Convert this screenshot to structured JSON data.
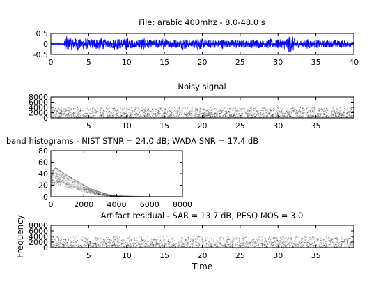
{
  "colors": {
    "waveform": "#0000ff",
    "axes": "#000000",
    "texture": "#000000",
    "background": "#ffffff"
  },
  "chart_data": [
    {
      "id": "wave",
      "type": "line",
      "title": "File: arabic 400mhz - 8.0-48.0 s",
      "xlabel": "",
      "ylabel": "",
      "xlim": [
        0,
        40
      ],
      "ylim": [
        -0.5,
        0.5
      ],
      "xticks": [
        "0",
        "5",
        "10",
        "15",
        "20",
        "25",
        "30",
        "35",
        "40"
      ],
      "yticks": [
        "-0.5",
        "0",
        "0.5"
      ],
      "grid": false,
      "series": [
        {
          "x": [
            0,
            1.7,
            2.0,
            2.5,
            3.0,
            3.5,
            4.0,
            4.5,
            5.0,
            5.5,
            6.0,
            6.5,
            7.0,
            7.5,
            8.0,
            8.5,
            9.0,
            9.5,
            10.0,
            10.5,
            11.0,
            11.5,
            12.0,
            12.5,
            13.0,
            13.5,
            14.0,
            14.5,
            15.0,
            15.5,
            16.0,
            16.5,
            17.0,
            17.5,
            18.0,
            18.5,
            19.0,
            19.5,
            20.0,
            20.5,
            21.0,
            21.5,
            22.0,
            22.5,
            23.0,
            23.5,
            24.0,
            24.5,
            25.0,
            25.5,
            26.0,
            26.5,
            27.0,
            27.5,
            28.0,
            28.5,
            29.0,
            29.5,
            30.0,
            30.5,
            31.0,
            31.5,
            32.0,
            32.5,
            33.0,
            33.5,
            34.0,
            34.5,
            35.0,
            35.5,
            36.0,
            36.5,
            37.0,
            37.5,
            38.0,
            38.5,
            39.0,
            39.5,
            40.0
          ],
          "envelope": [
            0.03,
            0.03,
            0.4,
            0.3,
            0.25,
            0.35,
            0.2,
            0.3,
            0.2,
            0.25,
            0.25,
            0.3,
            0.25,
            0.15,
            0.2,
            0.3,
            0.25,
            0.2,
            0.35,
            0.25,
            0.15,
            0.2,
            0.3,
            0.25,
            0.2,
            0.15,
            0.25,
            0.2,
            0.3,
            0.15,
            0.25,
            0.2,
            0.15,
            0.3,
            0.2,
            0.15,
            0.2,
            0.3,
            0.25,
            0.15,
            0.2,
            0.2,
            0.15,
            0.25,
            0.2,
            0.15,
            0.2,
            0.25,
            0.15,
            0.2,
            0.15,
            0.2,
            0.25,
            0.2,
            0.15,
            0.2,
            0.25,
            0.15,
            0.25,
            0.2,
            0.3,
            0.45,
            0.35,
            0.2,
            0.15,
            0.2,
            0.25,
            0.15,
            0.2,
            0.2,
            0.15,
            0.2,
            0.15,
            0.2,
            0.15,
            0.2,
            0.15,
            0.15,
            0.1
          ]
        }
      ]
    },
    {
      "id": "noisy",
      "type": "heatmap",
      "title": "Noisy signal",
      "xlabel": "",
      "ylabel": "",
      "xlim": [
        0,
        40
      ],
      "ylim": [
        0,
        8000
      ],
      "xticks": [
        "5",
        "10",
        "15",
        "20",
        "25",
        "30",
        "35"
      ],
      "yticks": [
        "0",
        "2000",
        "4000",
        "6000",
        "8000"
      ],
      "grid": false,
      "description_values": {
        "band_top": 4000,
        "relative_density": [
          1.0,
          0.8,
          0.6,
          0.45
        ]
      }
    },
    {
      "id": "hist",
      "type": "area",
      "title": "band histograms - NIST STNR = 24.0 dB; WADA SNR  = 17.4 dB",
      "xlabel": "",
      "ylabel": "",
      "xlim": [
        0,
        8000
      ],
      "ylim": [
        0,
        80
      ],
      "xticks": [
        "0",
        "2000",
        "4000",
        "6000",
        "8000"
      ],
      "yticks": [
        "0",
        "20",
        "40",
        "60",
        "80"
      ],
      "grid": false,
      "series": [
        {
          "x": [
            0,
            100,
            200,
            300,
            500,
            800,
            1200,
            1600,
            2000,
            2500,
            3000,
            3500,
            4000,
            5000,
            6000,
            7000,
            8000
          ],
          "y": [
            38,
            45,
            48,
            50,
            46,
            40,
            33,
            27,
            20,
            13,
            8,
            4,
            2,
            1,
            0.5,
            0.3,
            0.2
          ]
        }
      ]
    },
    {
      "id": "residual",
      "type": "heatmap",
      "title": "Artifact residual - SAR = 13.7 dB,  PESQ MOS = 3.0",
      "xlabel": "Time",
      "ylabel": "Frequency",
      "xlim": [
        0,
        40
      ],
      "ylim": [
        0,
        8000
      ],
      "xticks": [
        "5",
        "10",
        "15",
        "20",
        "25",
        "30",
        "35"
      ],
      "yticks": [
        "0",
        "2000",
        "4000",
        "6000",
        "8000"
      ],
      "grid": false,
      "description_values": {
        "band_top": 4000,
        "relative_density": [
          0.9,
          0.7,
          0.5,
          0.35
        ]
      }
    }
  ]
}
